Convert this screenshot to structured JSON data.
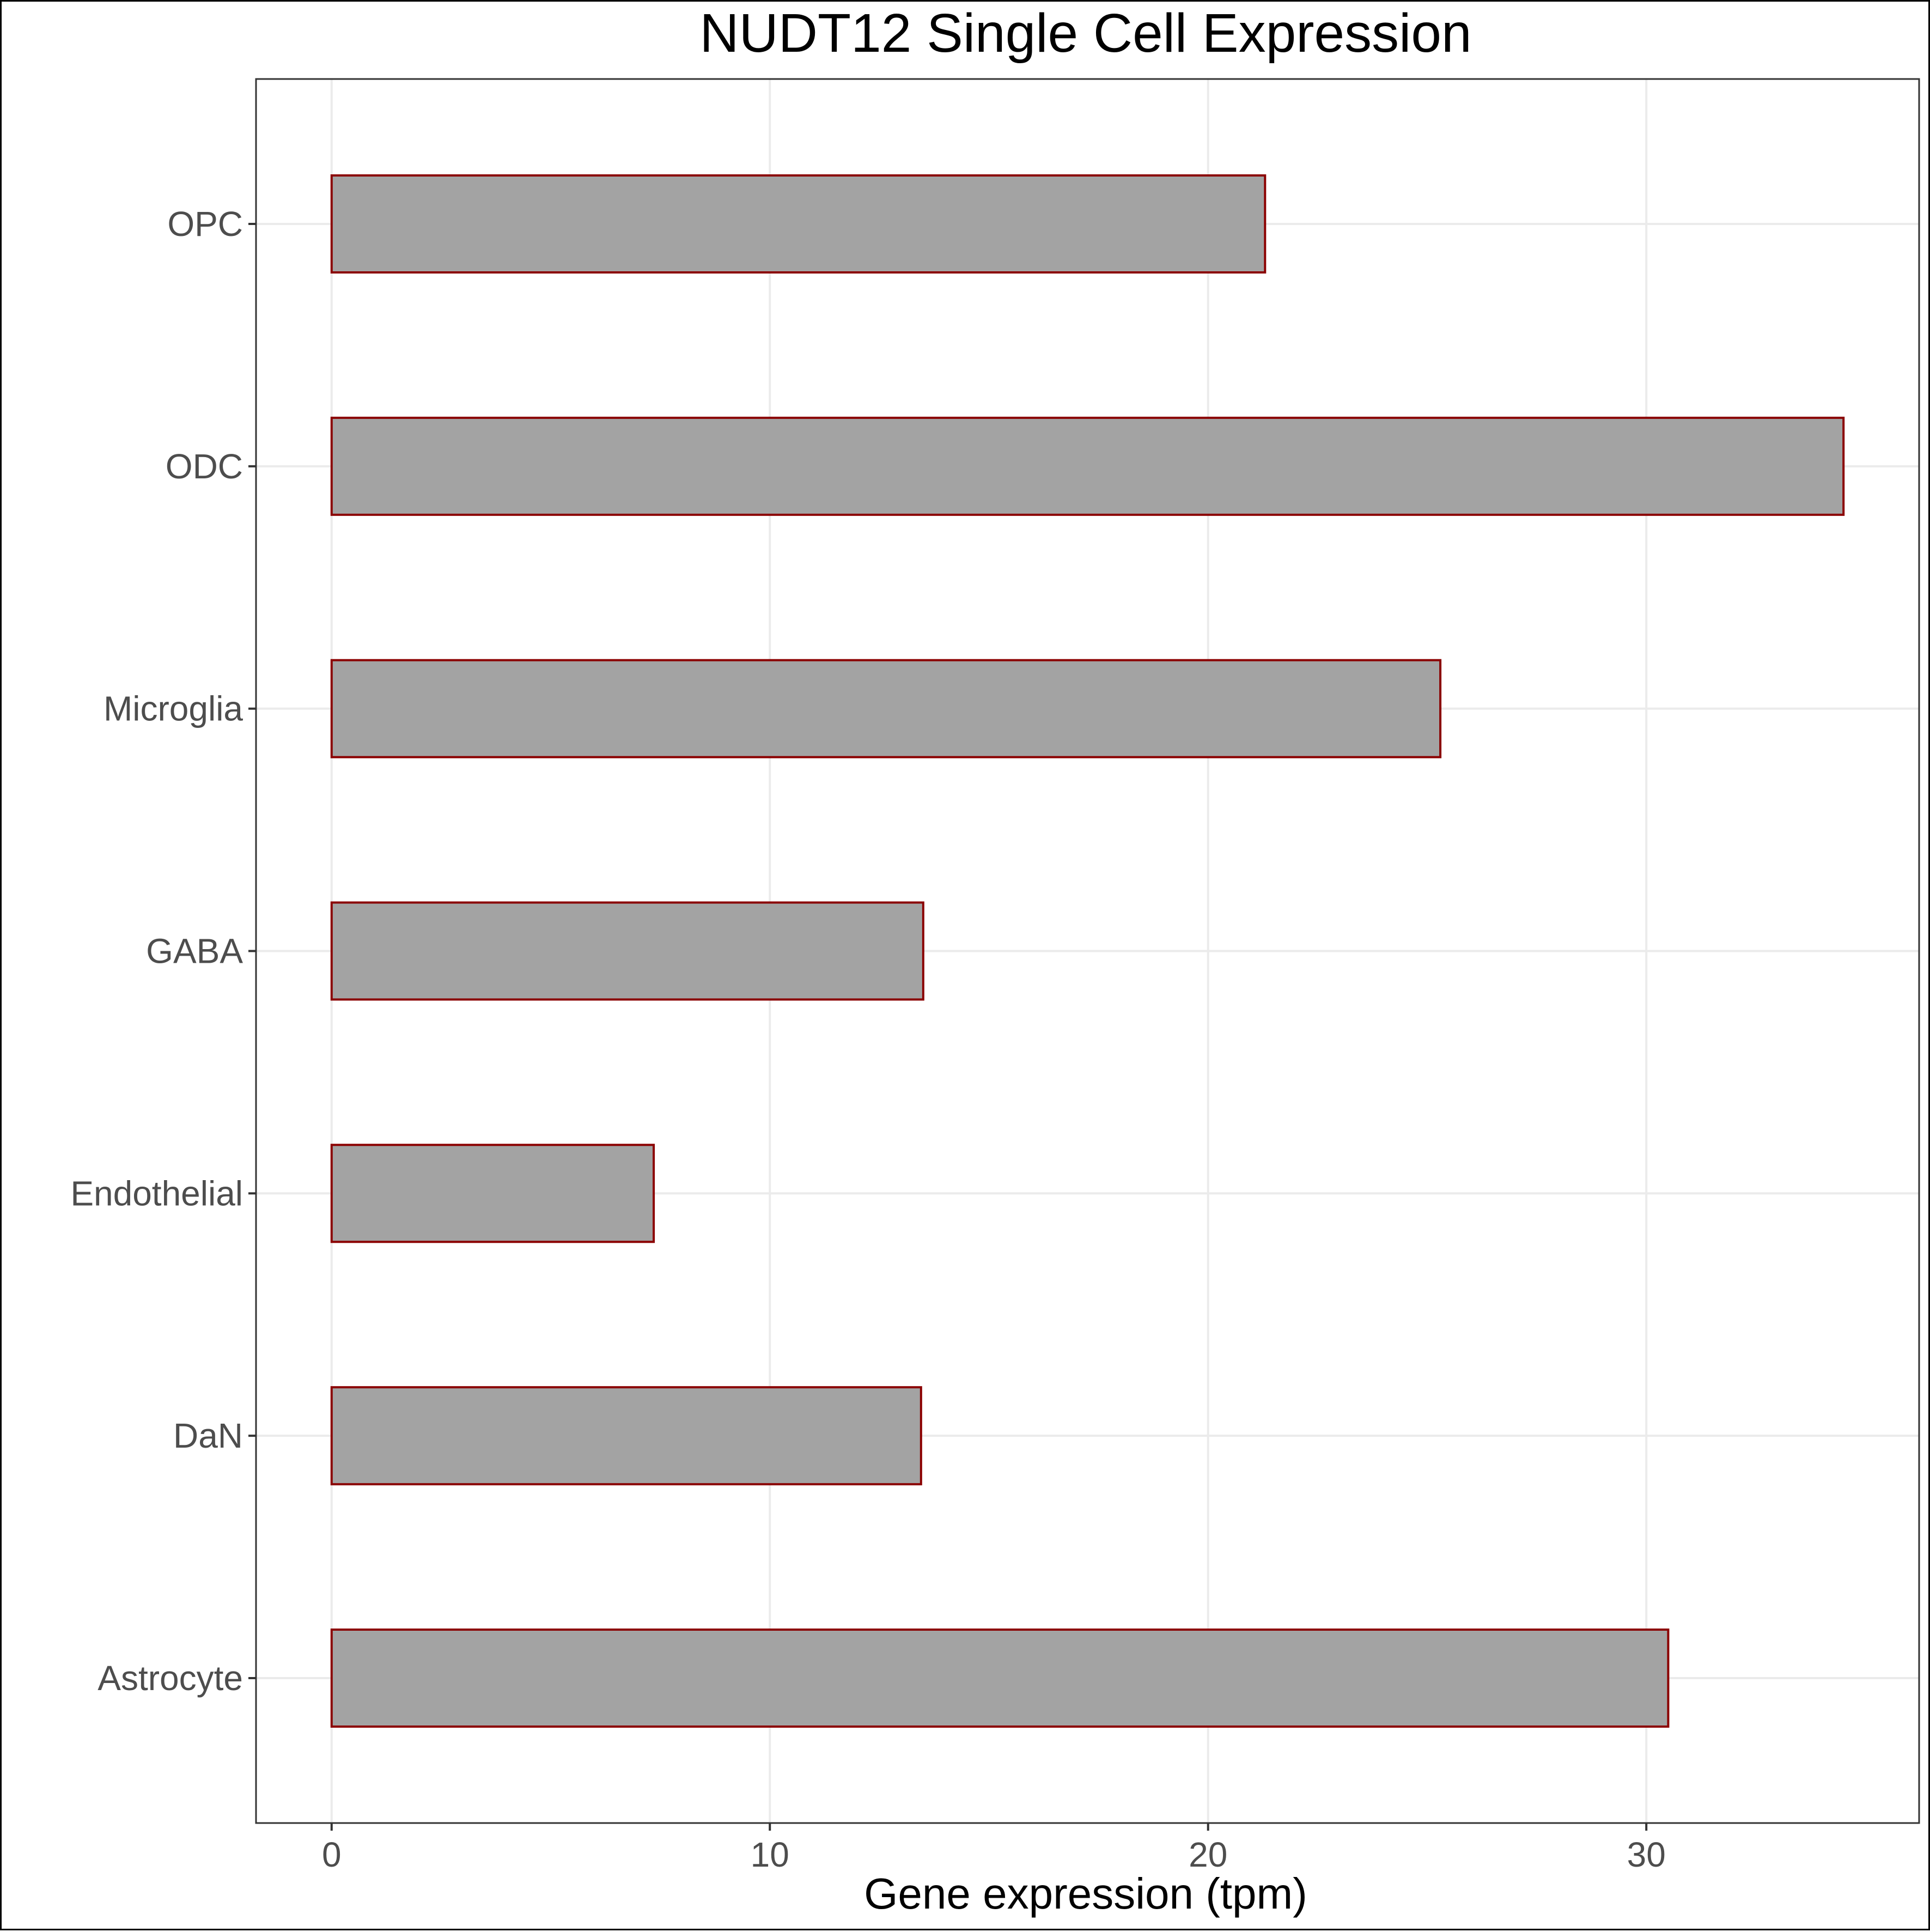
{
  "chart_data": {
    "type": "bar",
    "orientation": "horizontal",
    "title": "NUDT12 Single Cell Expression",
    "xlabel": "Gene expression (tpm)",
    "ylabel": "",
    "categories": [
      "Astrocyte",
      "DaN",
      "Endothelial",
      "GABA",
      "ODC",
      "Microglia",
      "OPC"
    ],
    "values": [
      30.5,
      13.45,
      7.35,
      13.5,
      34.5,
      25.3,
      21.3
    ],
    "category_order_bottom_to_top": [
      "Astrocyte",
      "DaN",
      "Endothelial",
      "GABA",
      "Microglia",
      "ODC",
      "OPC"
    ],
    "value_by_category": {
      "Astrocyte": 30.5,
      "DaN": 13.45,
      "Endothelial": 7.35,
      "GABA": 13.5,
      "Microglia": 25.3,
      "ODC": 34.5,
      "OPC": 21.3
    },
    "xlim": [
      -1.725,
      36.225
    ],
    "xticks": [
      0,
      10,
      20,
      30
    ],
    "grid": true,
    "legend": "none",
    "colors": {
      "bar_fill": "#a3a3a3",
      "bar_stroke": "#8b0000",
      "grid": "#ebebeb",
      "panel_border": "#333333",
      "tick_text": "#4d4d4d",
      "title_text": "#000000"
    }
  }
}
